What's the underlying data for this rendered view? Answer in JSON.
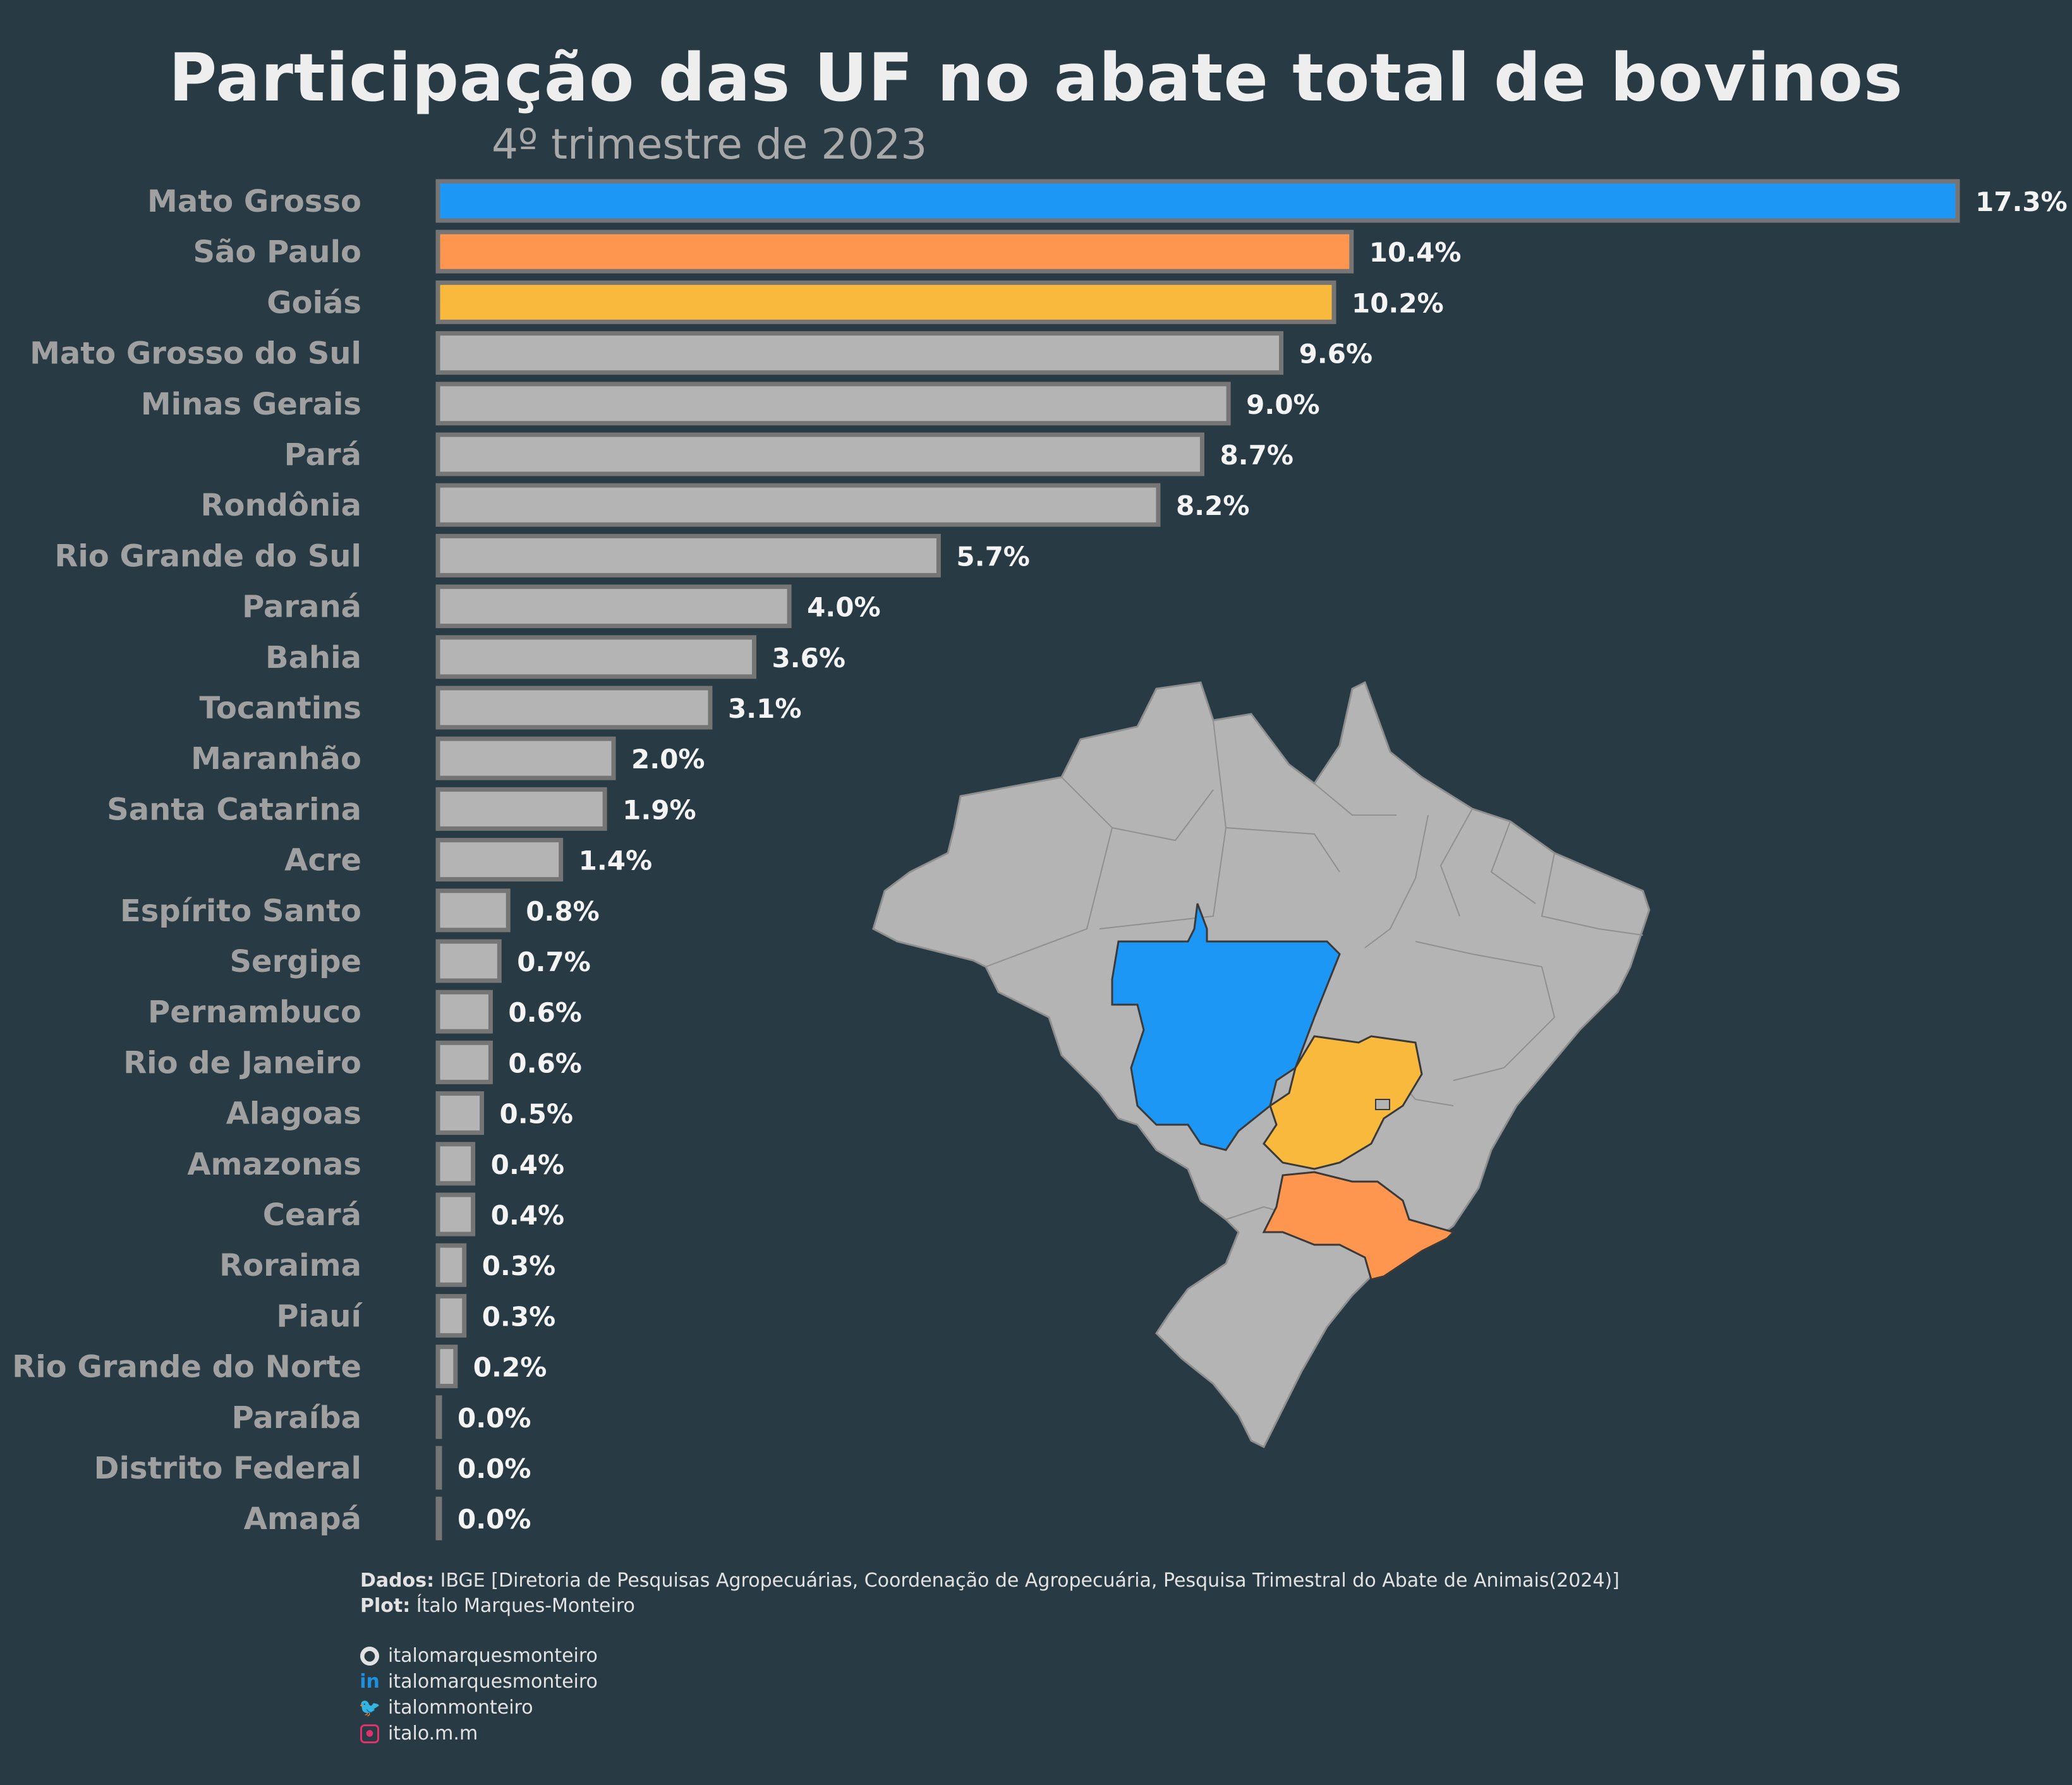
{
  "title": "Participação das UF no abate total de bovinos",
  "subtitle": "4º trimestre de 2023",
  "chart_data": {
    "type": "bar",
    "orientation": "horizontal",
    "title": "Participação das UF no abate total de bovinos",
    "subtitle": "4º trimestre de 2023",
    "xlabel": "",
    "ylabel": "",
    "unit": "%",
    "xlim": [
      0,
      17.3
    ],
    "grid": false,
    "categories": [
      "Mato Grosso",
      "São Paulo",
      "Goiás",
      "Mato Grosso do Sul",
      "Minas Gerais",
      "Pará",
      "Rondônia",
      "Rio Grande do Sul",
      "Paraná",
      "Bahia",
      "Tocantins",
      "Maranhão",
      "Santa Catarina",
      "Acre",
      "Espírito Santo",
      "Sergipe",
      "Pernambuco",
      "Rio de Janeiro",
      "Alagoas",
      "Amazonas",
      "Ceará",
      "Roraima",
      "Piauí",
      "Rio Grande do Norte",
      "Paraíba",
      "Distrito Federal",
      "Amapá"
    ],
    "values": [
      17.3,
      10.4,
      10.2,
      9.6,
      9.0,
      8.7,
      8.2,
      5.7,
      4.0,
      3.6,
      3.1,
      2.0,
      1.9,
      1.4,
      0.8,
      0.7,
      0.6,
      0.6,
      0.5,
      0.4,
      0.4,
      0.3,
      0.3,
      0.2,
      0.0,
      0.0,
      0.0
    ],
    "value_labels": [
      "17.3%",
      "10.4%",
      "10.2%",
      "9.6%",
      "9.0%",
      "8.7%",
      "8.2%",
      "5.7%",
      "4.0%",
      "3.6%",
      "3.1%",
      "2.0%",
      "1.9%",
      "1.4%",
      "0.8%",
      "0.7%",
      "0.6%",
      "0.6%",
      "0.5%",
      "0.4%",
      "0.4%",
      "0.3%",
      "0.3%",
      "0.2%",
      "0.0%",
      "0.0%",
      "0.0%"
    ],
    "highlight_colors": {
      "Mato Grosso": "#1c97f5",
      "São Paulo": "#ff964f",
      "Goiás": "#f8b93c"
    },
    "default_color": "#b5b4b4"
  },
  "caption": {
    "data_label": "Dados:",
    "data_text": "IBGE [Diretoria de Pesquisas Agropecuárias, Coordenação de Agropecuária, Pesquisa Trimestral do Abate de Animais(2024)]",
    "plot_label": "Plot:",
    "plot_text": "Ítalo Marques-Monteiro"
  },
  "social": [
    {
      "icon": "github-icon",
      "handle": "italomarquesmonteiro"
    },
    {
      "icon": "linkedin-icon",
      "handle": "italomarquesmonteiro"
    },
    {
      "icon": "twitter-icon",
      "handle": "italommonteiro"
    },
    {
      "icon": "instagram-icon",
      "handle": "italo.m.m"
    }
  ],
  "map": {
    "highlighted_states": [
      "Mato Grosso",
      "Goiás",
      "São Paulo"
    ]
  }
}
